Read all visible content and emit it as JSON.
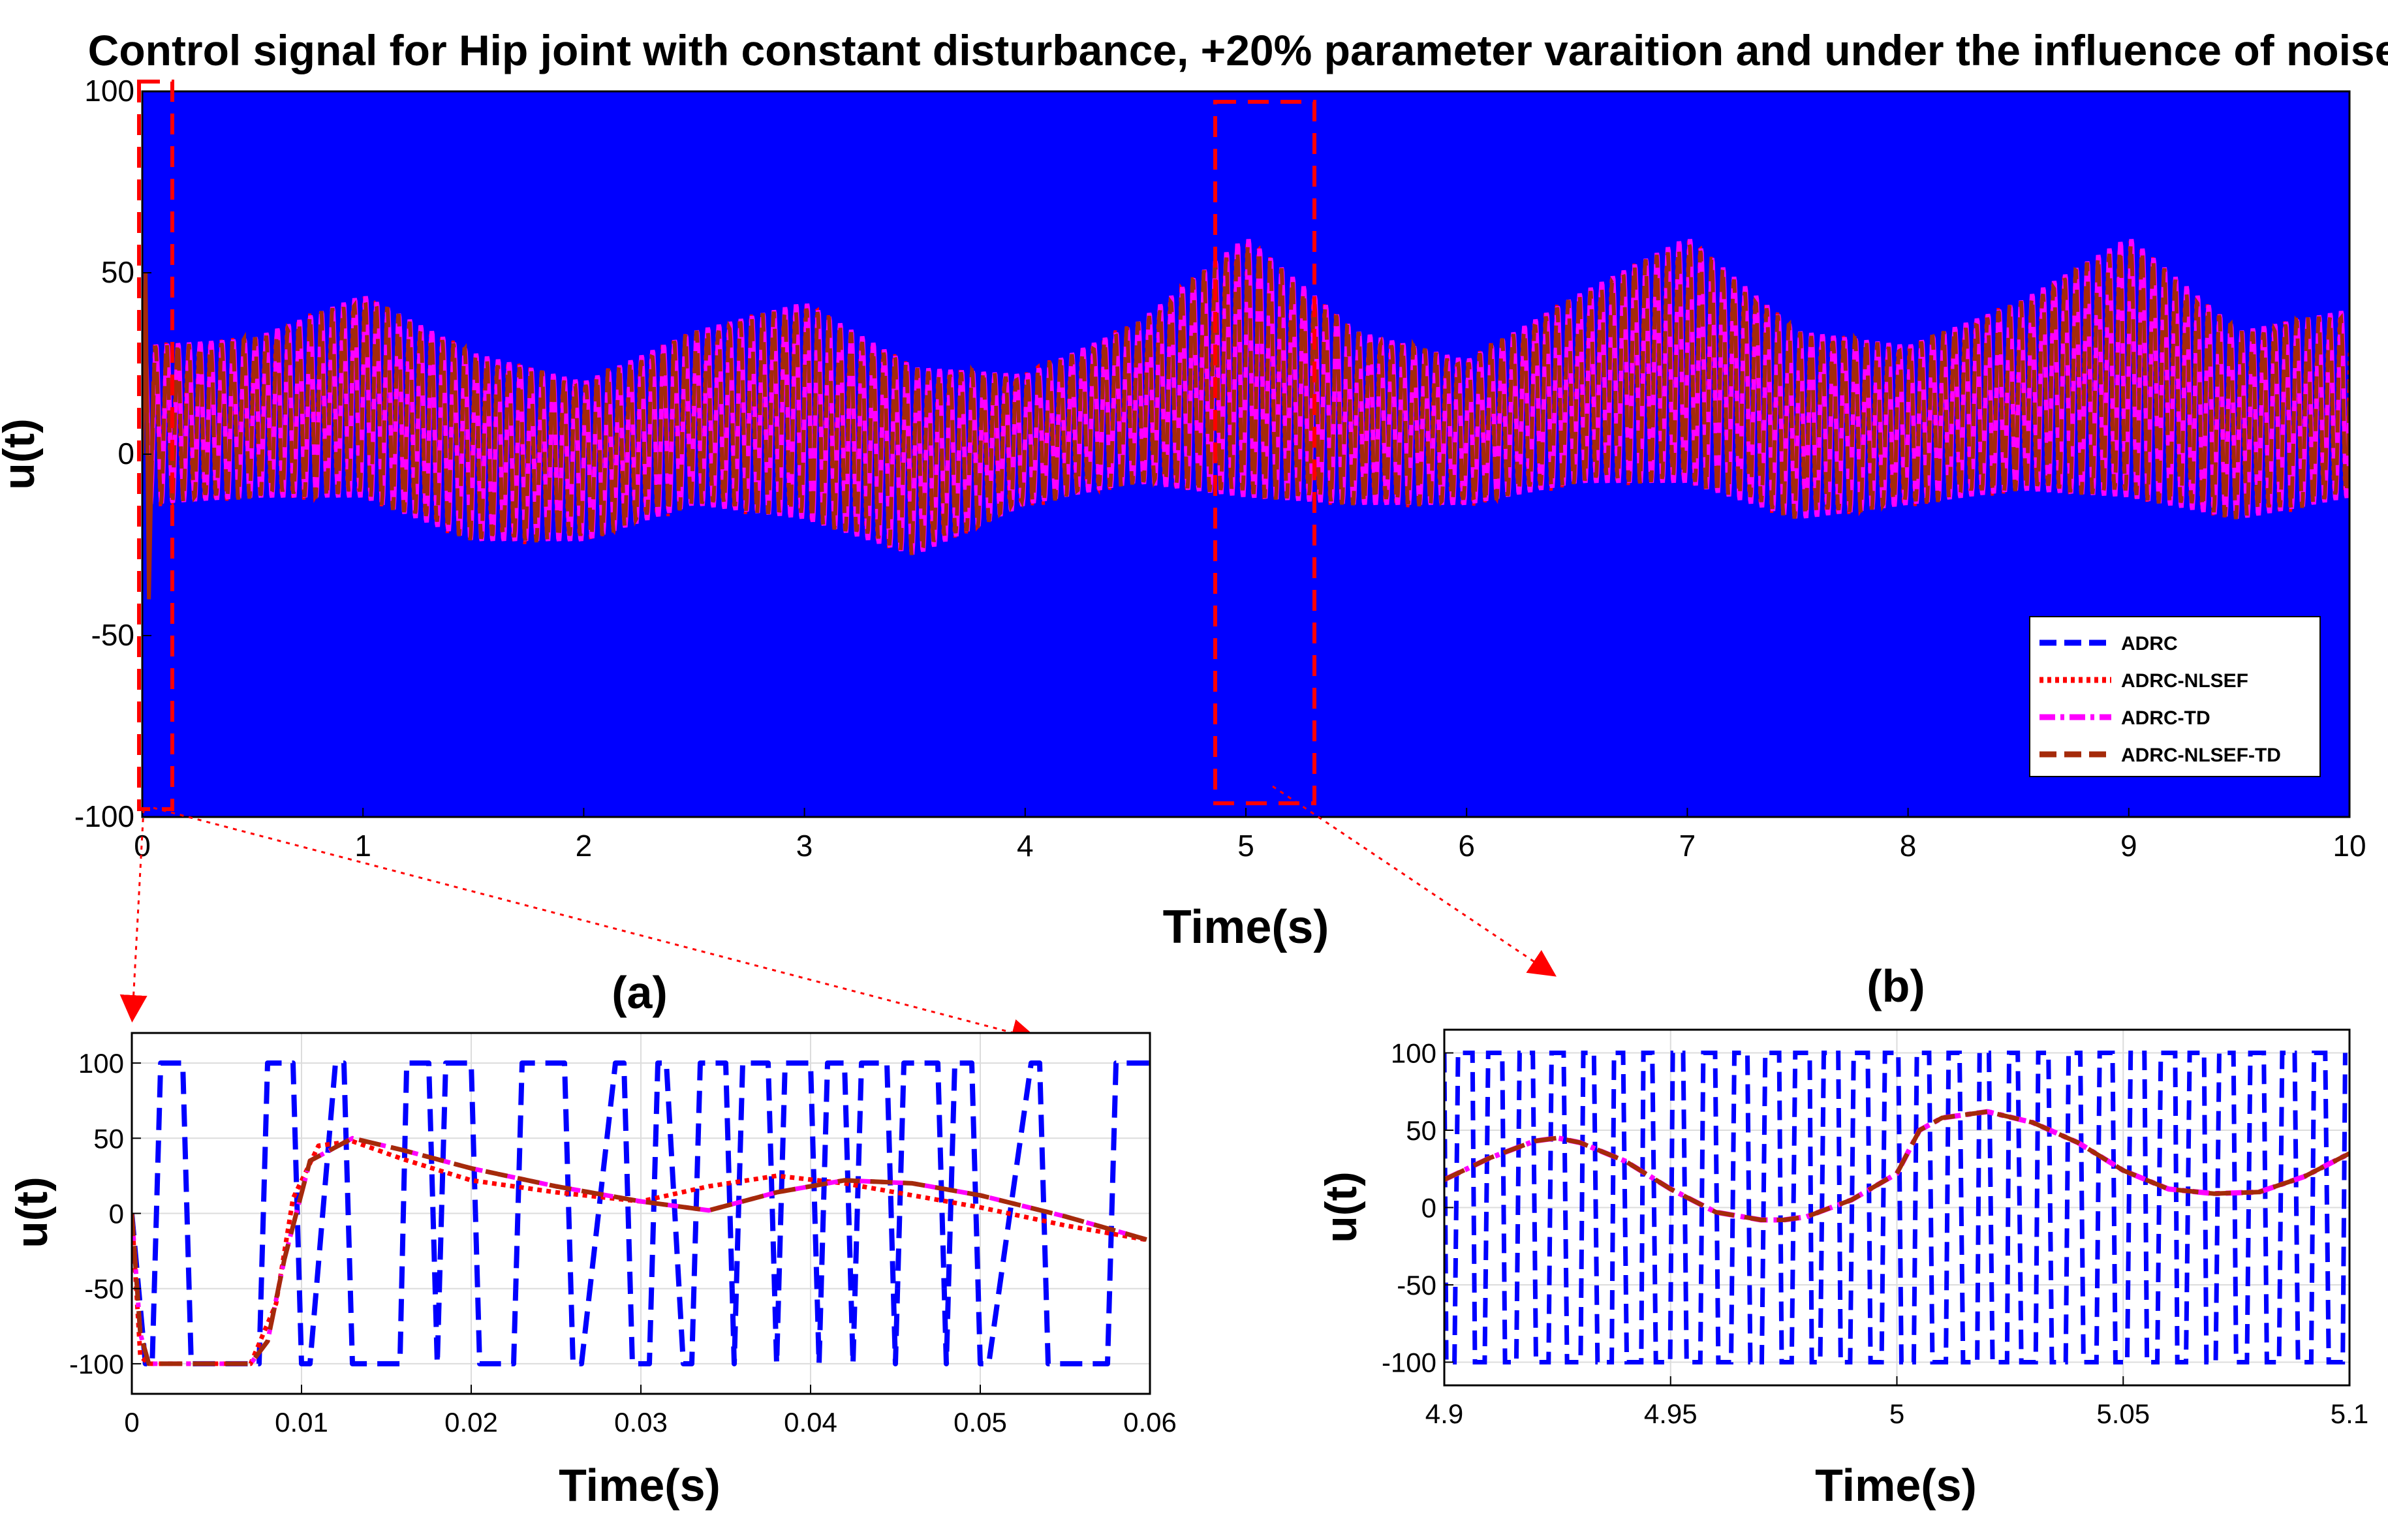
{
  "chart_data": [
    {
      "id": "main",
      "type": "line",
      "title": "Control signal for Hip joint with constant disturbance, +20% parameter varaition and under the influence of noise",
      "xlabel": "Time(s)",
      "ylabel": "u(t)",
      "xlim": [
        0,
        10
      ],
      "ylim": [
        -100,
        100
      ],
      "xticks": [
        "0",
        "1",
        "2",
        "3",
        "4",
        "5",
        "6",
        "7",
        "8",
        "9",
        "10"
      ],
      "yticks": [
        "-100",
        "-50",
        "0",
        "50",
        "100"
      ],
      "grid": false,
      "legend_position": "bottom-right",
      "series": [
        {
          "name": "ADRC",
          "color": "#0000ff",
          "style": "dashed",
          "description_values": {
            "min": -100,
            "max": 100
          }
        },
        {
          "name": "ADRC-NLSEF",
          "color": "#ff0000",
          "style": "dotted"
        },
        {
          "name": "ADRC-TD",
          "color": "#ff00ff",
          "style": "dashdot"
        },
        {
          "name": "ADRC-NLSEF-TD",
          "color": "#a52a0a",
          "style": "dashed"
        }
      ],
      "envelope": {
        "x": [
          0,
          0.5,
          1,
          1.5,
          2,
          2.5,
          3,
          3.5,
          4,
          4.5,
          5,
          5.5,
          6,
          6.5,
          7,
          7.5,
          8,
          8.5,
          9,
          9.5,
          10
        ],
        "center": [
          8,
          10,
          16,
          2,
          -2,
          10,
          12,
          -2,
          4,
          14,
          24,
          10,
          6,
          18,
          26,
          8,
          8,
          16,
          24,
          8,
          14
        ],
        "amplitude": [
          22,
          22,
          28,
          26,
          22,
          24,
          30,
          26,
          18,
          22,
          36,
          24,
          20,
          26,
          34,
          26,
          22,
          26,
          36,
          26,
          26
        ]
      },
      "zoom_boxes": [
        {
          "label": "a",
          "x_range": [
            0,
            0.15
          ],
          "y_range": [
            -100,
            100
          ]
        },
        {
          "label": "b",
          "x_range": [
            4.85,
            5.3
          ],
          "y_range": [
            -97,
            97
          ]
        }
      ]
    },
    {
      "id": "a",
      "type": "line",
      "title": "(a)",
      "xlabel": "Time(s)",
      "ylabel": "u(t)",
      "xlim": [
        0,
        0.06
      ],
      "ylim": [
        -120,
        120
      ],
      "xticks": [
        "0",
        "0.01",
        "0.02",
        "0.03",
        "0.04",
        "0.05",
        "0.06"
      ],
      "yticks": [
        "-100",
        "-50",
        "0",
        "50",
        "100"
      ],
      "grid": true,
      "series": [
        {
          "name": "ADRC",
          "color": "#0000ff",
          "style": "dashed",
          "x": [
            0,
            0.0008,
            0.0012,
            0.0017,
            0.0025,
            0.003,
            0.0035,
            0.0075,
            0.008,
            0.0095,
            0.01,
            0.0105,
            0.012,
            0.0125,
            0.013,
            0.0158,
            0.0162,
            0.0175,
            0.018,
            0.0185,
            0.0195,
            0.02,
            0.0205,
            0.0225,
            0.023,
            0.0235,
            0.0255,
            0.026,
            0.0265,
            0.0285,
            0.029,
            0.0295,
            0.0305,
            0.031,
            0.0315,
            0.0325,
            0.033,
            0.0335,
            0.035,
            0.0355,
            0.036,
            0.0375,
            0.038,
            0.0385,
            0.04,
            0.0405,
            0.041,
            0.042,
            0.0425,
            0.043,
            0.0445,
            0.045,
            0.0455,
            0.0475,
            0.048,
            0.0485,
            0.0495,
            0.05,
            0.0505,
            0.053,
            0.0535,
            0.054,
            0.0575,
            0.058,
            0.0585,
            0.0595,
            0.06
          ],
          "y": [
            0,
            -100,
            -100,
            100,
            100,
            100,
            -100,
            -100,
            100,
            100,
            -100,
            -100,
            100,
            100,
            -100,
            -100,
            100,
            100,
            -100,
            100,
            100,
            100,
            -100,
            -100,
            100,
            100,
            100,
            -100,
            -100,
            100,
            100,
            -100,
            -100,
            100,
            100,
            -100,
            -100,
            100,
            100,
            -100,
            100,
            100,
            -100,
            100,
            100,
            -100,
            100,
            100,
            -100,
            100,
            100,
            -100,
            100,
            100,
            -100,
            100,
            100,
            -100,
            -100,
            100,
            100,
            -100,
            -100,
            100,
            100,
            100,
            100
          ]
        },
        {
          "name": "ADRC-NLSEF",
          "color": "#ff0000",
          "style": "dotted",
          "x": [
            0,
            0.0005,
            0.001,
            0.007,
            0.0085,
            0.0095,
            0.011,
            0.013,
            0.016,
            0.02,
            0.025,
            0.03,
            0.034,
            0.038,
            0.042,
            0.046,
            0.05,
            0.055,
            0.06
          ],
          "y": [
            0,
            -95,
            -100,
            -100,
            -60,
            10,
            45,
            48,
            36,
            22,
            14,
            8,
            18,
            25,
            20,
            12,
            4,
            -8,
            -18
          ]
        },
        {
          "name": "ADRC-TD",
          "color": "#ff00ff",
          "style": "dashdot",
          "x": [
            0,
            0.0005,
            0.001,
            0.007,
            0.008,
            0.009,
            0.0105,
            0.013,
            0.016,
            0.02,
            0.025,
            0.03,
            0.034,
            0.038,
            0.042,
            0.046,
            0.05,
            0.055,
            0.06
          ],
          "y": [
            0,
            -80,
            -100,
            -100,
            -85,
            -30,
            35,
            50,
            42,
            30,
            18,
            8,
            2,
            14,
            22,
            20,
            12,
            -2,
            -18
          ]
        },
        {
          "name": "ADRC-NLSEF-TD",
          "color": "#a52a0a",
          "style": "dashed",
          "x": [
            0,
            0.0005,
            0.001,
            0.007,
            0.008,
            0.009,
            0.0105,
            0.013,
            0.016,
            0.02,
            0.025,
            0.03,
            0.034,
            0.038,
            0.042,
            0.046,
            0.05,
            0.055,
            0.06
          ],
          "y": [
            0,
            -80,
            -100,
            -100,
            -85,
            -30,
            35,
            50,
            42,
            30,
            18,
            8,
            2,
            14,
            22,
            20,
            12,
            -2,
            -18
          ]
        }
      ]
    },
    {
      "id": "b",
      "type": "line",
      "title": "(b)",
      "xlabel": "Time(s)",
      "ylabel": "u(t)",
      "xlim": [
        4.9,
        5.1
      ],
      "ylim": [
        -115,
        115
      ],
      "xticks": [
        "4.9",
        "4.95",
        "5",
        "5.05",
        "5.1"
      ],
      "yticks": [
        "-100",
        "-50",
        "0",
        "50",
        "100"
      ],
      "grid": true,
      "series": [
        {
          "name": "ADRC",
          "color": "#0000ff",
          "style": "dashed",
          "note": "rapid switching between -100 and 100 across the whole window"
        },
        {
          "name": "ADRC-TD",
          "color": "#ff00ff",
          "style": "dashdot",
          "x": [
            4.9,
            4.91,
            4.92,
            4.925,
            4.93,
            4.94,
            4.95,
            4.96,
            4.97,
            4.975,
            4.98,
            4.99,
            5.0,
            5.005,
            5.01,
            5.02,
            5.03,
            5.04,
            5.05,
            5.06,
            5.07,
            5.08,
            5.09,
            5.1
          ],
          "y": [
            18,
            32,
            43,
            45,
            42,
            30,
            12,
            -3,
            -8,
            -8,
            -6,
            5,
            22,
            50,
            58,
            62,
            55,
            42,
            24,
            12,
            9,
            10,
            20,
            35
          ]
        },
        {
          "name": "ADRC-NLSEF-TD",
          "color": "#a52a0a",
          "style": "dashed",
          "x": [
            4.9,
            4.91,
            4.92,
            4.925,
            4.93,
            4.94,
            4.95,
            4.96,
            4.97,
            4.975,
            4.98,
            4.99,
            5.0,
            5.005,
            5.01,
            5.02,
            5.03,
            5.04,
            5.05,
            5.06,
            5.07,
            5.08,
            5.09,
            5.1
          ],
          "y": [
            18,
            32,
            43,
            45,
            42,
            30,
            12,
            -3,
            -8,
            -8,
            -6,
            5,
            22,
            50,
            58,
            62,
            55,
            42,
            24,
            12,
            9,
            10,
            20,
            35
          ]
        }
      ]
    }
  ],
  "colors": {
    "adrc": "#0000ff",
    "nlsef": "#ff0000",
    "td": "#ff00ff",
    "nlsef_td": "#a52a0a",
    "zoom": "#ff0000"
  }
}
